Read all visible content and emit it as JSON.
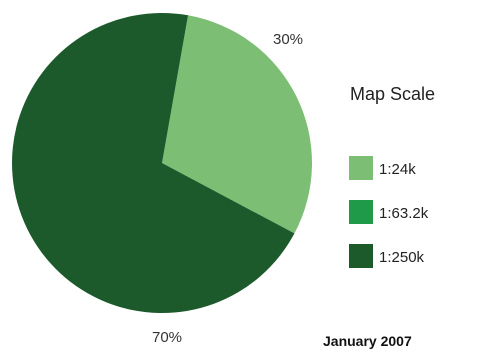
{
  "chart_data": {
    "type": "pie",
    "categories": [
      "1:24k",
      "1:63.2k",
      "1:250k"
    ],
    "values": [
      30,
      0,
      70
    ],
    "slice_labels": [
      "30%",
      "",
      "70%"
    ],
    "colors": [
      "#7dbe75",
      "#1e9a48",
      "#1c5a2c"
    ],
    "legend": {
      "title": "Map Scale",
      "placement": "right"
    },
    "footer": "January 2007"
  }
}
